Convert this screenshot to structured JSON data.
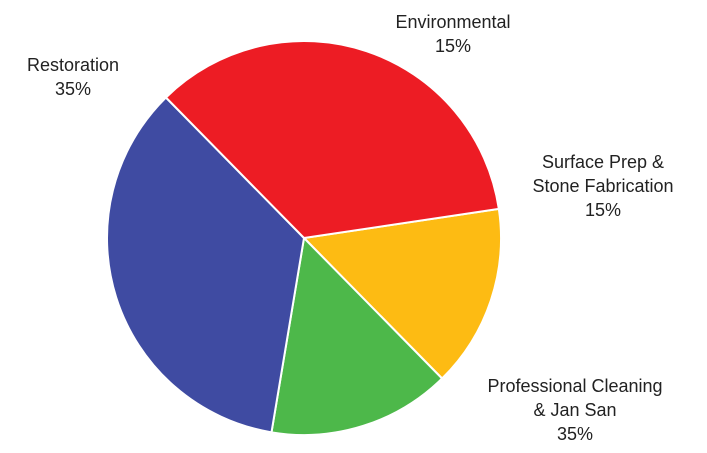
{
  "chart_data": {
    "type": "pie",
    "slices": [
      {
        "label_lines": [
          "Environmental"
        ],
        "value_label": "15%",
        "value": 15,
        "color": "#FDBB13"
      },
      {
        "label_lines": [
          "Surface Prep &",
          "Stone Fabrication"
        ],
        "value_label": "15%",
        "value": 15,
        "color": "#4DB84A"
      },
      {
        "label_lines": [
          "Professional Cleaning",
          "& Jan San"
        ],
        "value_label": "35%",
        "value": 35,
        "color": "#3F4BA2"
      },
      {
        "label_lines": [
          "Restoration"
        ],
        "value_label": "35%",
        "value": 35,
        "color": "#ED1C24"
      }
    ]
  }
}
